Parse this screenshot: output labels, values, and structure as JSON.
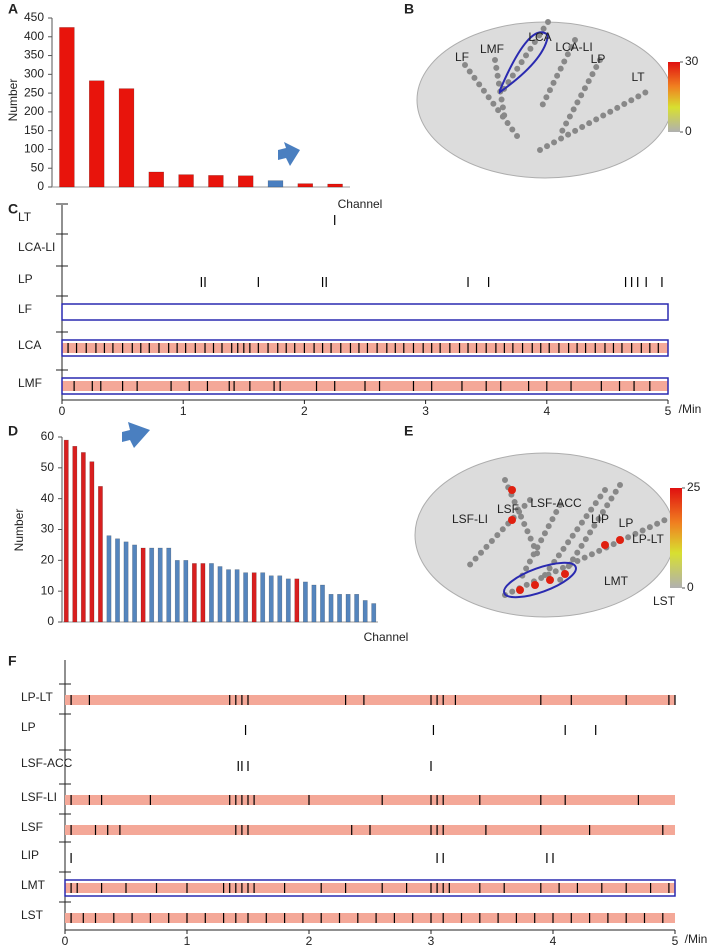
{
  "chart_data": [
    {
      "type": "bar",
      "panel": "A",
      "ylabel": "Number",
      "xlabel": "Channel",
      "categories": [
        null,
        null,
        null,
        null,
        null,
        null,
        null,
        null,
        null,
        null
      ],
      "values": [
        425,
        283,
        262,
        40,
        33,
        31,
        30,
        17,
        9,
        8
      ],
      "colors": [
        "#e8140c",
        "#e8140c",
        "#e8140c",
        "#e8140c",
        "#e8140c",
        "#e8140c",
        "#e8140c",
        "#4a7fc0",
        "#e8140c",
        "#e8140c"
      ],
      "ylim": [
        0,
        450
      ],
      "yticks": [
        0,
        50,
        100,
        150,
        200,
        250,
        300,
        350,
        400,
        450
      ]
    },
    {
      "type": "brain",
      "panel": "B",
      "labels": [
        "LF",
        "LMF",
        "LCA",
        "LCA-LI",
        "LP",
        "LT"
      ],
      "clim": [
        0,
        30
      ],
      "cticks": [
        0,
        30
      ]
    },
    {
      "type": "raster",
      "panel": "C",
      "xlabel": "/Min",
      "xlim": [
        0,
        5
      ],
      "xticks": [
        0,
        1,
        2,
        3,
        4,
        5
      ],
      "highlight_color": "#f4a898",
      "box_color": "#2a2ab0",
      "rows": [
        {
          "name": "LT",
          "highlight": false,
          "boxed": false,
          "spikes": [
            2.25
          ]
        },
        {
          "name": "LCA-LI",
          "highlight": false,
          "boxed": false,
          "spikes": []
        },
        {
          "name": "LP",
          "highlight": false,
          "boxed": false,
          "spikes": [
            1.15,
            1.18,
            1.62,
            2.15,
            2.18,
            3.35,
            3.52,
            4.65,
            4.7,
            4.75,
            4.82,
            4.95
          ]
        },
        {
          "name": "LF",
          "highlight": false,
          "boxed": true,
          "spikes": []
        },
        {
          "name": "LCA",
          "highlight": true,
          "boxed": true,
          "spikes": [
            0.05,
            0.12,
            0.2,
            0.28,
            0.35,
            0.42,
            0.5,
            0.58,
            0.65,
            0.72,
            0.8,
            0.88,
            0.95,
            1.02,
            1.1,
            1.18,
            1.25,
            1.32,
            1.4,
            1.45,
            1.5,
            1.55,
            1.62,
            1.7,
            1.78,
            1.85,
            1.92,
            2.0,
            2.08,
            2.15,
            2.22,
            2.3,
            2.38,
            2.45,
            2.52,
            2.6,
            2.68,
            2.75,
            2.82,
            2.9,
            2.98,
            3.05,
            3.12,
            3.2,
            3.28,
            3.35,
            3.42,
            3.5,
            3.58,
            3.65,
            3.72,
            3.8,
            3.88,
            3.95,
            4.02,
            4.1,
            4.18,
            4.25,
            4.32,
            4.4,
            4.48,
            4.55,
            4.62,
            4.7,
            4.78,
            4.85,
            4.92
          ]
        },
        {
          "name": "LMF",
          "highlight": true,
          "boxed": true,
          "spikes": [
            0.1,
            0.25,
            0.32,
            0.5,
            0.62,
            0.9,
            1.05,
            1.2,
            1.38,
            1.42,
            1.55,
            1.75,
            1.8,
            2.1,
            2.25,
            2.5,
            2.62,
            2.9,
            3.05,
            3.3,
            3.5,
            3.62,
            3.85,
            4.0,
            4.2,
            4.45,
            4.6,
            4.72,
            4.85
          ]
        }
      ]
    },
    {
      "type": "bar",
      "panel": "D",
      "ylabel": "Number",
      "xlabel": "Channel",
      "categories": [
        null,
        null,
        null,
        null,
        null,
        null,
        null,
        null,
        null,
        null,
        null,
        null,
        null,
        null,
        null,
        null,
        null,
        null,
        null,
        null,
        null,
        null,
        null,
        null,
        null,
        null,
        null,
        null,
        null,
        null,
        null,
        null,
        null,
        null,
        null,
        null,
        null
      ],
      "values": [
        59,
        57,
        55,
        52,
        44,
        28,
        27,
        26,
        25,
        24,
        24,
        24,
        24,
        20,
        20,
        19,
        19,
        19,
        18,
        17,
        17,
        16,
        16,
        16,
        15,
        15,
        14,
        14,
        13,
        12,
        12,
        9,
        9,
        9,
        9,
        7,
        6
      ],
      "colors": [
        "#d81f1f",
        "#d81f1f",
        "#d81f1f",
        "#d81f1f",
        "#d81f1f",
        "#5585bd",
        "#5585bd",
        "#5585bd",
        "#5585bd",
        "#d81f1f",
        "#5585bd",
        "#5585bd",
        "#5585bd",
        "#5585bd",
        "#5585bd",
        "#d81f1f",
        "#d81f1f",
        "#5585bd",
        "#5585bd",
        "#5585bd",
        "#5585bd",
        "#5585bd",
        "#d81f1f",
        "#5585bd",
        "#5585bd",
        "#5585bd",
        "#5585bd",
        "#d81f1f",
        "#5585bd",
        "#5585bd",
        "#5585bd",
        "#5585bd",
        "#5585bd",
        "#5585bd",
        "#5585bd",
        "#5585bd",
        "#5585bd"
      ],
      "ylim": [
        0,
        60
      ],
      "yticks": [
        0,
        10,
        20,
        30,
        40,
        50,
        60
      ]
    },
    {
      "type": "brain",
      "panel": "E",
      "labels": [
        "LSF-LI",
        "LSF",
        "LSF-ACC",
        "LIP",
        "LP",
        "LP-LT",
        "LMT",
        "LST"
      ],
      "clim": [
        0,
        25
      ],
      "cticks": [
        0,
        25
      ]
    },
    {
      "type": "raster",
      "panel": "F",
      "xlabel": "/Min",
      "xlim": [
        0,
        5
      ],
      "xticks": [
        0,
        1,
        2,
        3,
        4,
        5
      ],
      "highlight_color": "#f4a898",
      "box_color": "#2a2ab0",
      "rows": [
        {
          "name": "LP-LT",
          "highlight": true,
          "boxed": false,
          "spikes": [
            0.05,
            0.2,
            1.35,
            1.4,
            1.45,
            1.5,
            2.3,
            2.45,
            3.0,
            3.05,
            3.1,
            3.2,
            3.9,
            4.15,
            4.6,
            4.95,
            5.0
          ]
        },
        {
          "name": "LP",
          "highlight": false,
          "boxed": false,
          "spikes": [
            1.48,
            3.02,
            4.1,
            4.35
          ]
        },
        {
          "name": "LSF-ACC",
          "highlight": false,
          "boxed": false,
          "spikes": [
            1.42,
            1.45,
            1.5,
            3.0
          ]
        },
        {
          "name": "LSF-LI",
          "highlight": true,
          "boxed": false,
          "spikes": [
            0.05,
            0.2,
            0.3,
            0.7,
            1.35,
            1.4,
            1.45,
            1.5,
            1.55,
            2.0,
            2.6,
            3.0,
            3.05,
            3.1,
            3.4,
            3.9,
            4.1,
            4.7
          ]
        },
        {
          "name": "LSF",
          "highlight": true,
          "boxed": false,
          "spikes": [
            0.05,
            0.25,
            0.35,
            0.45,
            1.4,
            1.45,
            1.5,
            2.35,
            2.5,
            3.0,
            3.05,
            3.1,
            3.45,
            3.9,
            4.3,
            4.9
          ]
        },
        {
          "name": "LIP",
          "highlight": false,
          "boxed": false,
          "spikes": [
            0.05,
            3.05,
            3.1,
            3.95,
            4.0
          ]
        },
        {
          "name": "LMT",
          "highlight": true,
          "boxed": true,
          "spikes": [
            0.05,
            0.1,
            0.3,
            0.5,
            0.75,
            1.0,
            1.3,
            1.35,
            1.4,
            1.45,
            1.5,
            1.55,
            1.8,
            2.1,
            2.3,
            2.6,
            2.8,
            3.0,
            3.05,
            3.1,
            3.15,
            3.4,
            3.6,
            3.9,
            4.05,
            4.2,
            4.4,
            4.6,
            4.8,
            4.95
          ]
        },
        {
          "name": "LST",
          "highlight": true,
          "boxed": false,
          "spikes": [
            0.05,
            0.15,
            0.25,
            0.4,
            0.55,
            0.7,
            0.85,
            1.0,
            1.15,
            1.3,
            1.4,
            1.5,
            1.65,
            1.8,
            1.95,
            2.1,
            2.25,
            2.4,
            2.55,
            2.7,
            2.85,
            3.0,
            3.1,
            3.25,
            3.4,
            3.55,
            3.7,
            3.85,
            4.0,
            4.15,
            4.3,
            4.45,
            4.6,
            4.75,
            4.9
          ]
        }
      ]
    }
  ]
}
